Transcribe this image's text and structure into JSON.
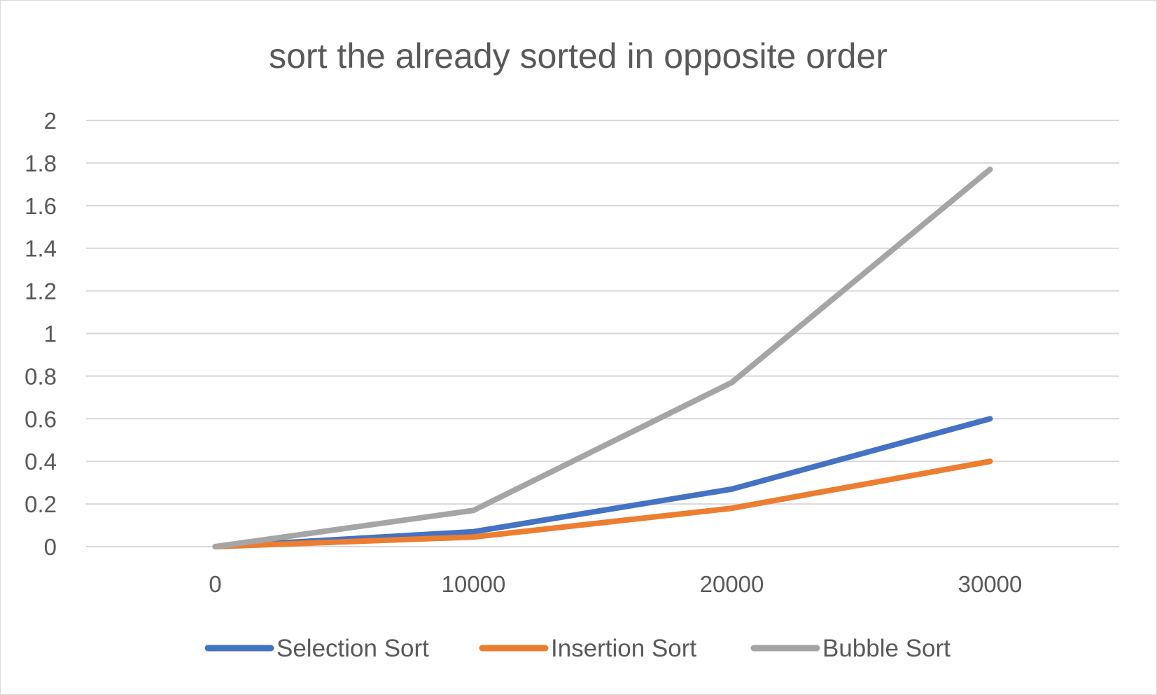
{
  "chart_data": {
    "type": "line",
    "title": "sort the already sorted in opposite order",
    "xlabel": "",
    "ylabel": "",
    "categories": [
      "0",
      "10000",
      "20000",
      "30000"
    ],
    "ylim": [
      0,
      2
    ],
    "yticks": [
      "0",
      "0.2",
      "0.4",
      "0.6",
      "0.8",
      "1",
      "1.2",
      "1.4",
      "1.6",
      "1.8",
      "2"
    ],
    "grid": true,
    "legend_position": "bottom",
    "series": [
      {
        "name": "Selection Sort",
        "color": "#4472c4",
        "values": [
          0,
          0.07,
          0.27,
          0.6
        ]
      },
      {
        "name": "Insertion Sort",
        "color": "#ed7d31",
        "values": [
          0,
          0.045,
          0.18,
          0.4
        ]
      },
      {
        "name": "Bubble Sort",
        "color": "#a5a5a5",
        "values": [
          0,
          0.17,
          0.77,
          1.77
        ]
      }
    ]
  }
}
